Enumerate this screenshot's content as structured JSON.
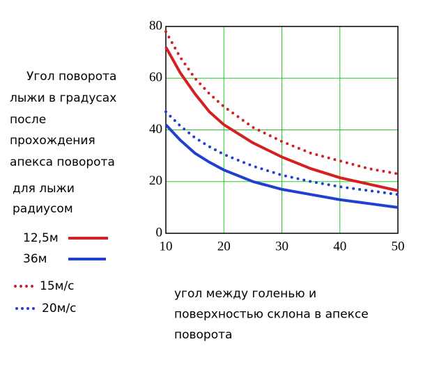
{
  "chart_data": {
    "type": "line",
    "annotation": [
      "Угол поворота",
      "лыжи в градусах",
      "после",
      "прохождения",
      "апекса поворота"
    ],
    "legend_title": [
      "для лыжи",
      "радиусом"
    ],
    "x_label": [
      "угол между голенью и",
      "поверхностью склона в апексе",
      "поворота"
    ],
    "x": [
      10,
      12.5,
      15,
      17.5,
      20,
      25,
      30,
      35,
      40,
      45,
      50
    ],
    "series": [
      {
        "name": "12,5м",
        "color": "#d42020",
        "style": "solid",
        "values": [
          72,
          62,
          54,
          47,
          42,
          35,
          29.5,
          25,
          21.5,
          19,
          16.5
        ]
      },
      {
        "name": "36м",
        "color": "#2040d0",
        "style": "solid",
        "values": [
          42,
          36,
          31,
          27.5,
          24.5,
          20,
          17,
          15,
          13,
          11.5,
          10
        ]
      },
      {
        "name": "15м/с",
        "color": "#d42020",
        "style": "dotted",
        "values": [
          78,
          68,
          60,
          54,
          49,
          41,
          35.5,
          31,
          28,
          25,
          23
        ]
      },
      {
        "name": "20м/с",
        "color": "#2040d0",
        "style": "dotted",
        "values": [
          47,
          41.5,
          37,
          33.5,
          30.5,
          26,
          22.5,
          20,
          18,
          16.5,
          15
        ]
      }
    ],
    "xlim": [
      10,
      50
    ],
    "ylim": [
      0,
      80
    ],
    "xticks": [
      10,
      20,
      30,
      40,
      50
    ],
    "yticks": [
      0,
      20,
      40,
      60,
      80
    ],
    "grid": true,
    "grid_color": "#22cc22"
  }
}
